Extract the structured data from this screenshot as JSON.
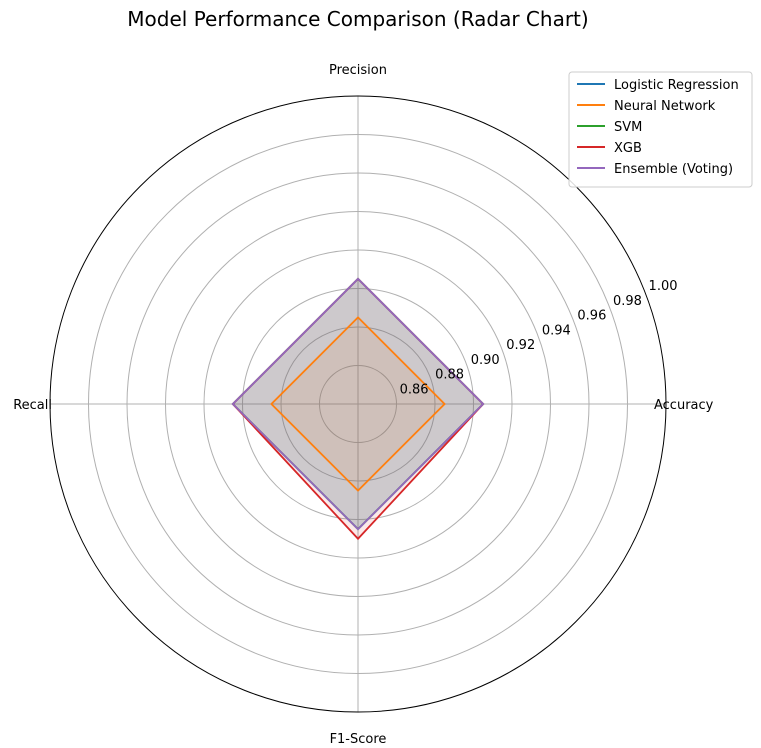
{
  "chart_data": {
    "type": "radar",
    "title": "Model Performance Comparison (Radar Chart)",
    "axes": [
      "Accuracy",
      "Precision",
      "Recall",
      "F1-Score"
    ],
    "rlim": [
      0.84,
      1.0
    ],
    "rticks": [
      0.86,
      0.88,
      0.9,
      0.92,
      0.94,
      0.96,
      0.98,
      1.0
    ],
    "rtick_labels": [
      "0.86",
      "0.88",
      "0.90",
      "0.92",
      "0.94",
      "0.96",
      "0.98",
      "1.00"
    ],
    "grid": true,
    "legend_position": "top-right",
    "series": [
      {
        "name": "Logistic Regression",
        "color": "#1f77b4",
        "values": [
          0.905,
          0.905,
          0.905,
          0.905
        ]
      },
      {
        "name": "Neural Network",
        "color": "#ff7f0e",
        "values": [
          0.885,
          0.885,
          0.885,
          0.885
        ]
      },
      {
        "name": "SVM",
        "color": "#2ca02c",
        "values": [
          0.905,
          0.905,
          0.905,
          0.905
        ]
      },
      {
        "name": "XGB",
        "color": "#d62728",
        "values": [
          0.905,
          0.905,
          0.905,
          0.91
        ]
      },
      {
        "name": "Ensemble (Voting)",
        "color": "#9467bd",
        "values": [
          0.905,
          0.905,
          0.905,
          0.905
        ]
      }
    ]
  }
}
